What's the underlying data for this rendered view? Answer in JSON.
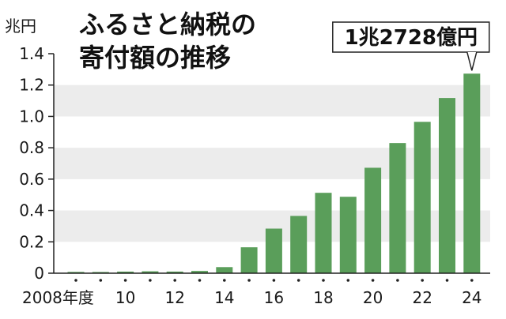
{
  "chart_data": {
    "type": "bar",
    "title_lines": [
      "ふるさと納税の",
      "寄付額の推移"
    ],
    "unit": "兆円",
    "x": [
      2008,
      2009,
      2010,
      2011,
      2012,
      2013,
      2014,
      2015,
      2016,
      2017,
      2018,
      2019,
      2020,
      2021,
      2022,
      2023,
      2024
    ],
    "x_tick_labels": [
      {
        "x": 2008,
        "label": "2008年度"
      },
      {
        "x": 2010,
        "label": "10"
      },
      {
        "x": 2012,
        "label": "12"
      },
      {
        "x": 2014,
        "label": "14"
      },
      {
        "x": 2016,
        "label": "16"
      },
      {
        "x": 2018,
        "label": "18"
      },
      {
        "x": 2020,
        "label": "20"
      },
      {
        "x": 2022,
        "label": "22"
      },
      {
        "x": 2024,
        "label": "24"
      }
    ],
    "values": [
      0.0081,
      0.0077,
      0.0102,
      0.0122,
      0.0104,
      0.0145,
      0.0389,
      0.1653,
      0.2844,
      0.3653,
      0.5127,
      0.4875,
      0.6725,
      0.8302,
      0.9654,
      1.1175,
      1.2728
    ],
    "ylim": [
      0,
      1.4
    ],
    "y_ticks": [
      {
        "value": 0,
        "label": "0"
      },
      {
        "value": 0.2,
        "label": "0.2"
      },
      {
        "value": 0.4,
        "label": "0.4"
      },
      {
        "value": 0.6,
        "label": "0.6"
      },
      {
        "value": 0.8,
        "label": "0.8"
      },
      {
        "value": 1.0,
        "label": "1.0"
      },
      {
        "value": 1.2,
        "label": "1.2"
      },
      {
        "value": 1.4,
        "label": "1.4"
      }
    ],
    "callout": {
      "x": 2024,
      "label": "1兆2728億円"
    },
    "colors": {
      "bar": "#5a9e5a",
      "band": "#ececec",
      "text": "#111111"
    },
    "grid": "alternating horizontal bands"
  }
}
